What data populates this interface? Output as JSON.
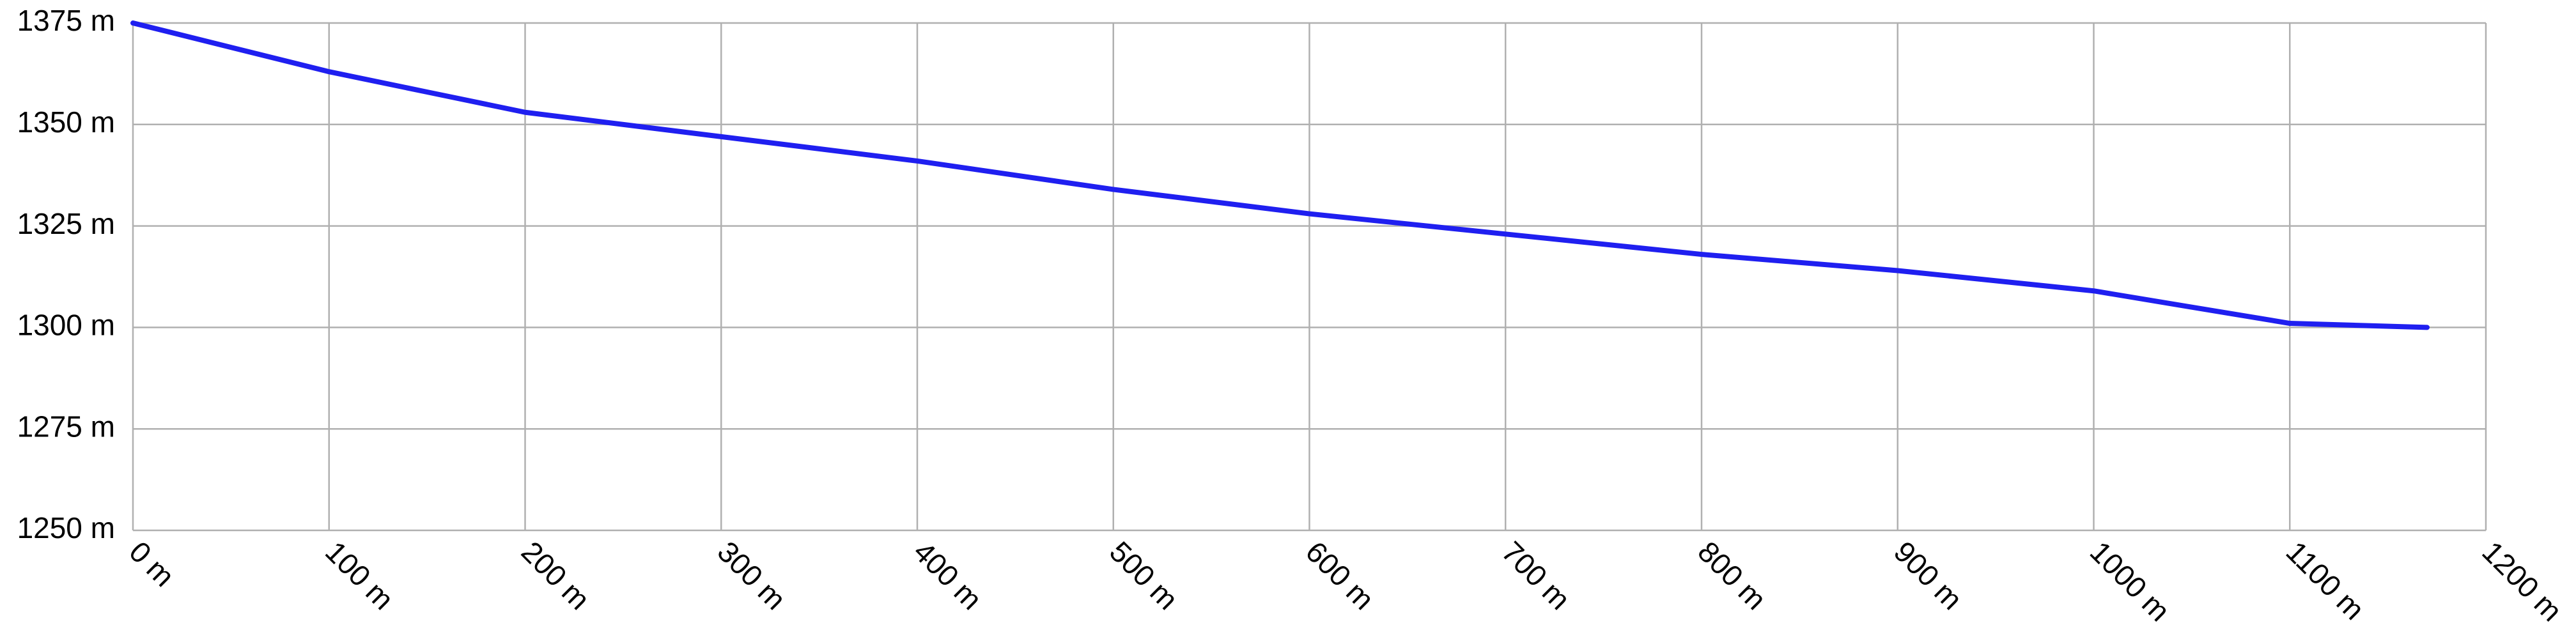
{
  "chart_data": {
    "type": "line",
    "x": [
      0,
      50,
      100,
      150,
      200,
      300,
      400,
      500,
      600,
      700,
      800,
      900,
      1000,
      1050,
      1100,
      1170
    ],
    "series": [
      {
        "color": "#1f1ff0",
        "values": [
          1375,
          1369,
          1363,
          1358,
          1353,
          1347,
          1341,
          1334,
          1328,
          1323,
          1318,
          1314,
          1309,
          1305,
          1301,
          1300
        ]
      }
    ],
    "xlim": [
      0,
      1200
    ],
    "xticks": [
      {
        "value": 0,
        "label": "0 m"
      },
      {
        "value": 100,
        "label": "100 m"
      },
      {
        "value": 200,
        "label": "200 m"
      },
      {
        "value": 300,
        "label": "300 m"
      },
      {
        "value": 400,
        "label": "400 m"
      },
      {
        "value": 500,
        "label": "500 m"
      },
      {
        "value": 600,
        "label": "600 m"
      },
      {
        "value": 700,
        "label": "700 m"
      },
      {
        "value": 800,
        "label": "800 m"
      },
      {
        "value": 900,
        "label": "900 m"
      },
      {
        "value": 1000,
        "label": "1000 m"
      },
      {
        "value": 1100,
        "label": "1100 m"
      },
      {
        "value": 1200,
        "label": "1200 m"
      }
    ],
    "ylim": [
      1250,
      1375
    ],
    "yticks": [
      {
        "value": 1250,
        "label": "1250 m"
      },
      {
        "value": 1275,
        "label": "1275 m"
      },
      {
        "value": 1300,
        "label": "1300 m"
      },
      {
        "value": 1325,
        "label": "1325 m"
      },
      {
        "value": 1350,
        "label": "1350 m"
      },
      {
        "value": 1375,
        "label": "1375 m"
      }
    ],
    "grid": true
  }
}
